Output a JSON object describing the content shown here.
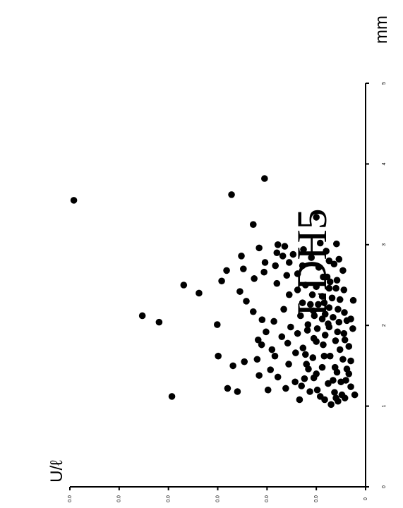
{
  "chart_data": {
    "type": "scatter",
    "title": "LDH5",
    "xlabel": "mm",
    "ylabel": "U/ℓ",
    "rotation": "rotated 90° clockwise",
    "xlim": [
      0,
      5
    ],
    "ylim": [
      0,
      6
    ],
    "x_ticks": [
      "0",
      "1",
      "2",
      "3",
      "4",
      "5"
    ],
    "y_ticks": [
      "0",
      "0.0",
      "0.0",
      "0.0",
      "0.0",
      "0.0",
      "0.0"
    ],
    "grid": false,
    "legend": "none",
    "points": [
      {
        "x": 3.55,
        "y": 5.92
      },
      {
        "x": 3.82,
        "y": 2.05
      },
      {
        "x": 3.62,
        "y": 2.72
      },
      {
        "x": 2.12,
        "y": 4.53
      },
      {
        "x": 2.04,
        "y": 4.19
      },
      {
        "x": 2.5,
        "y": 3.69
      },
      {
        "x": 2.4,
        "y": 3.38
      },
      {
        "x": 1.12,
        "y": 3.93
      },
      {
        "x": 3.25,
        "y": 2.28
      },
      {
        "x": 3.34,
        "y": 1.0
      },
      {
        "x": 2.68,
        "y": 2.82
      },
      {
        "x": 2.7,
        "y": 2.48
      },
      {
        "x": 2.55,
        "y": 2.92
      },
      {
        "x": 2.86,
        "y": 2.52
      },
      {
        "x": 2.01,
        "y": 3.01
      },
      {
        "x": 1.62,
        "y": 2.99
      },
      {
        "x": 1.5,
        "y": 2.69
      },
      {
        "x": 1.55,
        "y": 2.46
      },
      {
        "x": 1.22,
        "y": 2.8
      },
      {
        "x": 1.18,
        "y": 2.6
      },
      {
        "x": 2.96,
        "y": 2.16
      },
      {
        "x": 2.78,
        "y": 2.04
      },
      {
        "x": 3.0,
        "y": 1.78
      },
      {
        "x": 2.88,
        "y": 1.47
      },
      {
        "x": 2.74,
        "y": 1.28
      },
      {
        "x": 3.01,
        "y": 0.59
      },
      {
        "x": 2.76,
        "y": 0.64
      },
      {
        "x": 2.46,
        "y": 0.6
      },
      {
        "x": 2.31,
        "y": 0.25
      },
      {
        "x": 2.06,
        "y": 0.38
      },
      {
        "x": 1.92,
        "y": 0.57
      },
      {
        "x": 1.81,
        "y": 0.61
      },
      {
        "x": 1.62,
        "y": 0.72
      },
      {
        "x": 1.46,
        "y": 0.38
      },
      {
        "x": 1.3,
        "y": 0.5
      },
      {
        "x": 1.17,
        "y": 0.63
      },
      {
        "x": 1.1,
        "y": 0.6
      },
      {
        "x": 1.08,
        "y": 0.83
      },
      {
        "x": 1.18,
        "y": 1.13
      },
      {
        "x": 1.3,
        "y": 1.43
      },
      {
        "x": 1.45,
        "y": 1.93
      },
      {
        "x": 1.62,
        "y": 1.84
      },
      {
        "x": 1.82,
        "y": 2.18
      },
      {
        "x": 2.07,
        "y": 2.1
      },
      {
        "x": 2.17,
        "y": 2.28
      },
      {
        "x": 2.3,
        "y": 2.42
      },
      {
        "x": 2.42,
        "y": 2.55
      },
      {
        "x": 2.58,
        "y": 2.26
      },
      {
        "x": 2.66,
        "y": 2.06
      },
      {
        "x": 2.52,
        "y": 1.8
      },
      {
        "x": 2.38,
        "y": 1.55
      },
      {
        "x": 2.28,
        "y": 1.28
      },
      {
        "x": 2.18,
        "y": 1.06
      },
      {
        "x": 2.08,
        "y": 0.88
      },
      {
        "x": 1.98,
        "y": 0.74
      },
      {
        "x": 2.01,
        "y": 1.17
      },
      {
        "x": 1.9,
        "y": 1.38
      },
      {
        "x": 1.78,
        "y": 1.58
      },
      {
        "x": 1.72,
        "y": 1.27
      },
      {
        "x": 1.6,
        "y": 1.07
      },
      {
        "x": 1.48,
        "y": 0.88
      },
      {
        "x": 1.35,
        "y": 1.05
      },
      {
        "x": 1.25,
        "y": 1.3
      },
      {
        "x": 1.22,
        "y": 1.62
      },
      {
        "x": 1.36,
        "y": 1.78
      },
      {
        "x": 1.52,
        "y": 1.56
      },
      {
        "x": 1.66,
        "y": 1.42
      },
      {
        "x": 1.84,
        "y": 1.05
      },
      {
        "x": 1.96,
        "y": 0.98
      },
      {
        "x": 2.1,
        "y": 0.66
      },
      {
        "x": 2.22,
        "y": 0.74
      },
      {
        "x": 2.36,
        "y": 0.88
      },
      {
        "x": 2.48,
        "y": 1.0
      },
      {
        "x": 2.6,
        "y": 0.86
      },
      {
        "x": 2.72,
        "y": 0.95
      },
      {
        "x": 2.84,
        "y": 1.1
      },
      {
        "x": 2.94,
        "y": 1.26
      },
      {
        "x": 2.86,
        "y": 1.68
      },
      {
        "x": 2.74,
        "y": 1.83
      },
      {
        "x": 2.62,
        "y": 1.6
      },
      {
        "x": 2.44,
        "y": 1.38
      },
      {
        "x": 2.2,
        "y": 1.66
      },
      {
        "x": 2.05,
        "y": 1.86
      },
      {
        "x": 1.92,
        "y": 2.02
      },
      {
        "x": 1.76,
        "y": 2.11
      },
      {
        "x": 1.58,
        "y": 2.2
      },
      {
        "x": 1.38,
        "y": 2.16
      },
      {
        "x": 1.2,
        "y": 1.98
      },
      {
        "x": 1.08,
        "y": 1.34
      },
      {
        "x": 1.12,
        "y": 0.92
      },
      {
        "x": 1.28,
        "y": 0.76
      },
      {
        "x": 1.42,
        "y": 0.58
      },
      {
        "x": 1.58,
        "y": 0.46
      },
      {
        "x": 1.74,
        "y": 0.34
      },
      {
        "x": 1.9,
        "y": 0.44
      },
      {
        "x": 2.04,
        "y": 0.54
      },
      {
        "x": 2.16,
        "y": 0.43
      },
      {
        "x": 2.32,
        "y": 0.52
      },
      {
        "x": 2.44,
        "y": 0.44
      },
      {
        "x": 2.56,
        "y": 0.58
      },
      {
        "x": 2.68,
        "y": 0.46
      },
      {
        "x": 2.82,
        "y": 0.54
      },
      {
        "x": 2.92,
        "y": 0.8
      },
      {
        "x": 3.02,
        "y": 0.92
      },
      {
        "x": 2.8,
        "y": 0.74
      },
      {
        "x": 2.54,
        "y": 0.72
      },
      {
        "x": 2.26,
        "y": 1.12
      },
      {
        "x": 2.12,
        "y": 1.32
      },
      {
        "x": 1.98,
        "y": 1.52
      },
      {
        "x": 1.86,
        "y": 1.7
      },
      {
        "x": 1.7,
        "y": 1.9
      },
      {
        "x": 1.52,
        "y": 1.2
      },
      {
        "x": 1.4,
        "y": 1.0
      },
      {
        "x": 1.32,
        "y": 0.66
      },
      {
        "x": 1.14,
        "y": 0.48
      },
      {
        "x": 1.02,
        "y": 0.7
      },
      {
        "x": 1.06,
        "y": 0.56
      },
      {
        "x": 1.2,
        "y": 0.98
      },
      {
        "x": 1.34,
        "y": 1.24
      },
      {
        "x": 1.46,
        "y": 1.16
      },
      {
        "x": 1.64,
        "y": 1.22
      },
      {
        "x": 1.76,
        "y": 0.86
      },
      {
        "x": 1.88,
        "y": 0.82
      },
      {
        "x": 2.02,
        "y": 0.76
      },
      {
        "x": 2.14,
        "y": 0.82
      },
      {
        "x": 2.26,
        "y": 0.96
      },
      {
        "x": 2.38,
        "y": 1.08
      },
      {
        "x": 2.5,
        "y": 1.22
      },
      {
        "x": 2.64,
        "y": 1.38
      },
      {
        "x": 2.78,
        "y": 1.55
      },
      {
        "x": 2.9,
        "y": 1.8
      },
      {
        "x": 2.98,
        "y": 1.64
      },
      {
        "x": 1.1,
        "y": 0.42
      },
      {
        "x": 1.24,
        "y": 0.3
      },
      {
        "x": 1.4,
        "y": 0.34
      },
      {
        "x": 1.56,
        "y": 0.3
      },
      {
        "x": 1.7,
        "y": 0.52
      },
      {
        "x": 1.82,
        "y": 0.42
      },
      {
        "x": 1.96,
        "y": 0.26
      },
      {
        "x": 2.08,
        "y": 0.3
      },
      {
        "x": 2.2,
        "y": 0.56
      },
      {
        "x": 2.34,
        "y": 0.68
      },
      {
        "x": 2.46,
        "y": 0.74
      },
      {
        "x": 2.6,
        "y": 0.78
      },
      {
        "x": 1.14,
        "y": 0.22
      },
      {
        "x": 1.32,
        "y": 0.4
      },
      {
        "x": 1.48,
        "y": 0.62
      },
      {
        "x": 1.62,
        "y": 0.84
      },
      {
        "x": 1.8,
        "y": 1.0
      },
      {
        "x": 1.94,
        "y": 1.18
      },
      {
        "x": 2.12,
        "y": 1.04
      },
      {
        "x": 2.28,
        "y": 0.84
      }
    ]
  }
}
